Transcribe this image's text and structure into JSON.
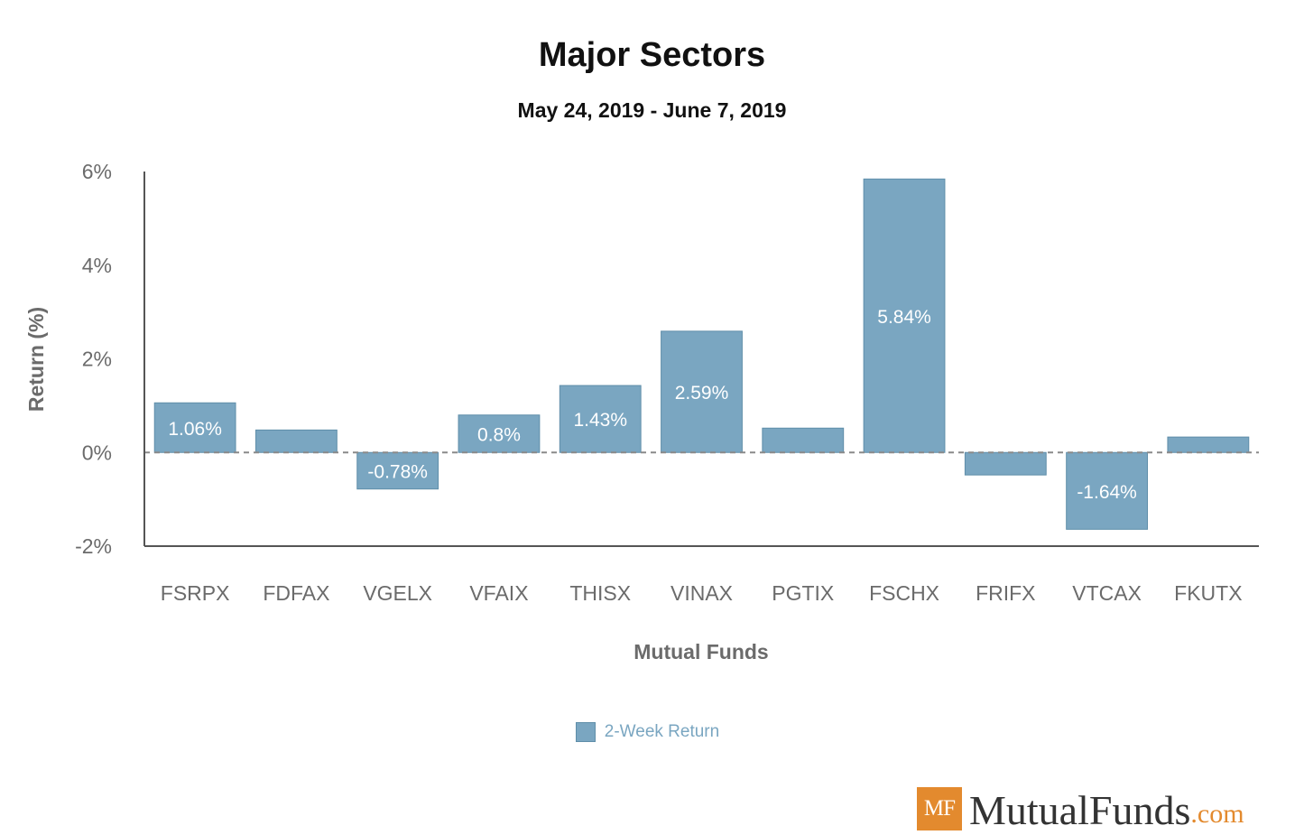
{
  "chart_data": {
    "type": "bar",
    "title": "Major Sectors",
    "subtitle": "May 24, 2019 - June 7, 2019",
    "xlabel": "Mutual Funds",
    "ylabel": "Return (%)",
    "ylim": [
      -2,
      6
    ],
    "yticks": [
      {
        "value": 6,
        "label": "6%"
      },
      {
        "value": 4,
        "label": "4%"
      },
      {
        "value": 2,
        "label": "2%"
      },
      {
        "value": 0,
        "label": "0%"
      },
      {
        "value": -2,
        "label": "-2%"
      }
    ],
    "categories": [
      "FSRPX",
      "FDFAX",
      "VGELX",
      "VFAIX",
      "THISX",
      "VINAX",
      "PGTIX",
      "FSCHX",
      "FRIFX",
      "VTCAX",
      "FKUTX"
    ],
    "series": [
      {
        "name": "2-Week Return",
        "color": "#7aa6c1",
        "values": [
          1.06,
          0.48,
          -0.78,
          0.8,
          1.43,
          2.59,
          0.52,
          5.84,
          -0.48,
          -1.64,
          0.33
        ],
        "labels": [
          "1.06%",
          "",
          "-0.78%",
          "0.8%",
          "1.43%",
          "2.59%",
          "",
          "5.84%",
          "",
          "-1.64%",
          ""
        ]
      }
    ],
    "legend": "bottom"
  },
  "logo": {
    "badge": "MF",
    "name": "MutualFunds",
    "tld": ".com",
    "accent_color": "#e38a2e"
  }
}
